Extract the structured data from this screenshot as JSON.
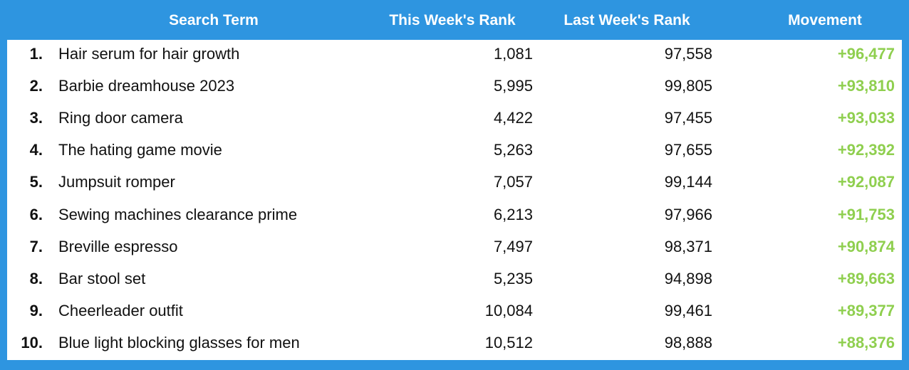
{
  "table": {
    "header": [
      "Search Term",
      "This Week's Rank",
      "Last Week's Rank",
      "Movement"
    ],
    "rows": [
      [
        "1.",
        "Hair serum for hair growth",
        "1,081",
        "97,558",
        "+96,477"
      ],
      [
        "2.",
        "Barbie dreamhouse 2023",
        "5,995",
        "99,805",
        "+93,810"
      ],
      [
        "3.",
        "Ring door camera",
        "4,422",
        "97,455",
        "+93,033"
      ],
      [
        "4.",
        "The hating game movie",
        "5,263",
        "97,655",
        "+92,392"
      ],
      [
        "5.",
        "Jumpsuit romper",
        "7,057",
        "99,144",
        "+92,087"
      ],
      [
        "6.",
        "Sewing machines clearance prime",
        "6,213",
        "97,966",
        "+91,753"
      ],
      [
        "7.",
        "Breville espresso",
        "7,497",
        "98,371",
        "+90,874"
      ],
      [
        "8.",
        "Bar stool set",
        "5,235",
        "94,898",
        "+89,663"
      ],
      [
        "9.",
        "Cheerleader outfit",
        "10,084",
        "99,461",
        "+89,377"
      ],
      [
        "10.",
        "Blue light blocking glasses for men",
        "10,512",
        "98,888",
        "+88,376"
      ]
    ]
  }
}
